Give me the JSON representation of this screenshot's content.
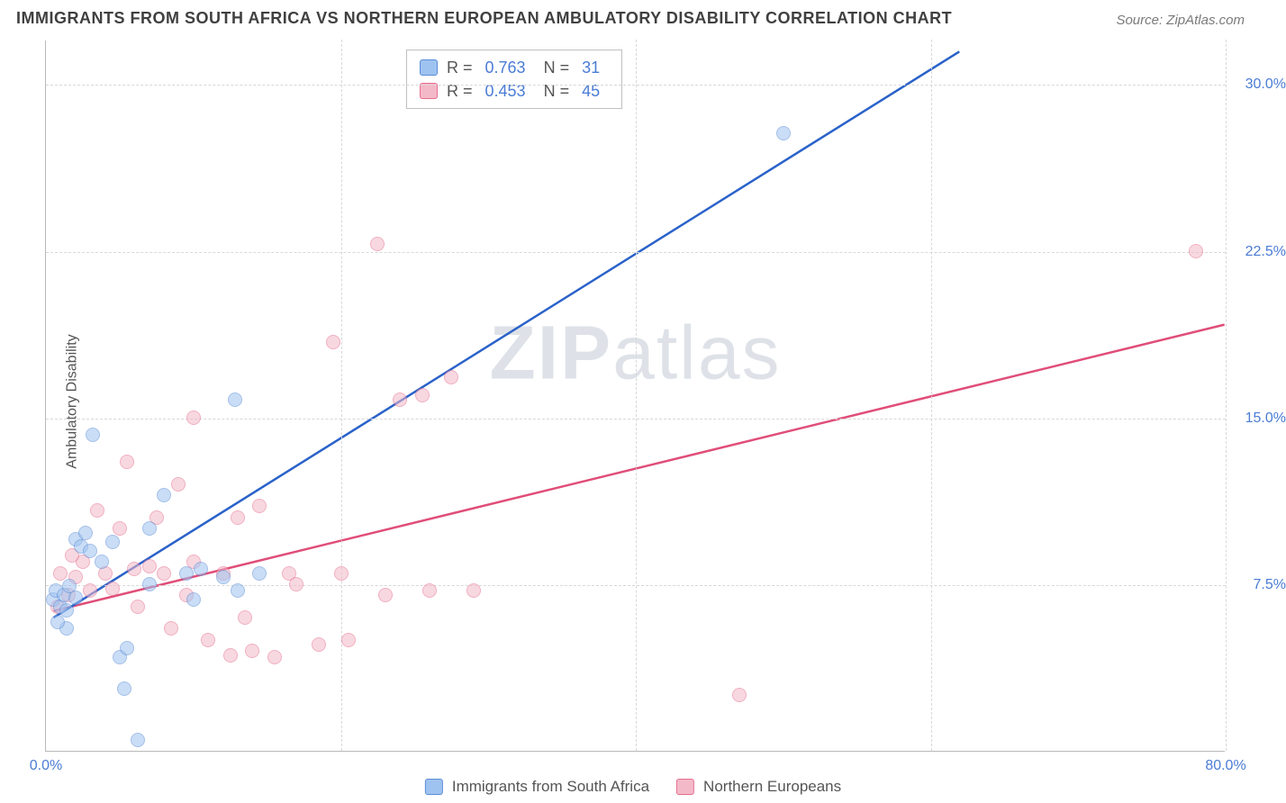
{
  "title": "IMMIGRANTS FROM SOUTH AFRICA VS NORTHERN EUROPEAN AMBULATORY DISABILITY CORRELATION CHART",
  "source": "Source: ZipAtlas.com",
  "y_axis_label": "Ambulatory Disability",
  "watermark": {
    "part1": "ZIP",
    "part2": "atlas"
  },
  "colors": {
    "series1_fill": "#9fc3f0",
    "series1_stroke": "#5a8cd6",
    "series2_fill": "#f4b9c8",
    "series2_stroke": "#e56f8f",
    "line1": "#2a62c9",
    "line2": "#e04e78",
    "grid": "#d8d8d8",
    "axis": "#b8b8b8",
    "tick_text": "#4a7cd4",
    "title_text": "#404040",
    "label_text": "#555555",
    "background": "#ffffff"
  },
  "chart": {
    "type": "scatter",
    "xlim": [
      0,
      80
    ],
    "ylim": [
      0,
      32
    ],
    "x_ticks": [
      0,
      20,
      40,
      60,
      80
    ],
    "x_tick_labels": [
      "0.0%",
      "",
      "",
      "",
      "80.0%"
    ],
    "y_ticks": [
      7.5,
      15.0,
      22.5,
      30.0
    ],
    "y_tick_labels": [
      "7.5%",
      "15.0%",
      "22.5%",
      "30.0%"
    ],
    "marker_radius": 8,
    "marker_opacity": 0.55,
    "line_width": 2.5
  },
  "legend_stats": {
    "rows": [
      {
        "r_label": "R =",
        "r_value": "0.763",
        "n_label": "N =",
        "n_value": "31"
      },
      {
        "r_label": "R =",
        "r_value": "0.453",
        "n_label": "N =",
        "n_value": "45"
      }
    ]
  },
  "bottom_legend": {
    "items": [
      {
        "label": "Immigrants from South Africa"
      },
      {
        "label": "Northern Europeans"
      }
    ]
  },
  "trend_lines": {
    "line1": {
      "x1": 0.5,
      "y1": 6.0,
      "x2": 62,
      "y2": 31.5
    },
    "line2": {
      "x1": 0.5,
      "y1": 6.3,
      "x2": 80,
      "y2": 19.2
    }
  },
  "series1": {
    "name": "Immigrants from South Africa",
    "points": [
      [
        0.5,
        6.8
      ],
      [
        0.7,
        7.2
      ],
      [
        1.0,
        6.5
      ],
      [
        1.2,
        7.0
      ],
      [
        1.4,
        6.3
      ],
      [
        1.6,
        7.4
      ],
      [
        1.4,
        5.5
      ],
      [
        2.0,
        9.5
      ],
      [
        2.4,
        9.2
      ],
      [
        2.7,
        9.8
      ],
      [
        3.0,
        9.0
      ],
      [
        3.2,
        14.2
      ],
      [
        3.8,
        8.5
      ],
      [
        4.5,
        9.4
      ],
      [
        5.0,
        4.2
      ],
      [
        5.3,
        2.8
      ],
      [
        5.5,
        4.6
      ],
      [
        6.2,
        0.5
      ],
      [
        7.0,
        10.0
      ],
      [
        7.0,
        7.5
      ],
      [
        8.0,
        11.5
      ],
      [
        9.5,
        8.0
      ],
      [
        10.0,
        6.8
      ],
      [
        10.5,
        8.2
      ],
      [
        12.0,
        7.8
      ],
      [
        12.8,
        15.8
      ],
      [
        13.0,
        7.2
      ],
      [
        14.5,
        8.0
      ],
      [
        50.0,
        27.8
      ],
      [
        0.8,
        5.8
      ],
      [
        2.0,
        6.9
      ]
    ]
  },
  "series2": {
    "name": "Northern Europeans",
    "points": [
      [
        0.8,
        6.5
      ],
      [
        1.0,
        8.0
      ],
      [
        1.5,
        7.0
      ],
      [
        2.0,
        7.8
      ],
      [
        2.5,
        8.5
      ],
      [
        3.0,
        7.2
      ],
      [
        3.5,
        10.8
      ],
      [
        4.0,
        8.0
      ],
      [
        4.5,
        7.3
      ],
      [
        5.0,
        10.0
      ],
      [
        5.5,
        13.0
      ],
      [
        6.0,
        8.2
      ],
      [
        6.2,
        6.5
      ],
      [
        7.0,
        8.3
      ],
      [
        7.5,
        10.5
      ],
      [
        8.0,
        8.0
      ],
      [
        8.5,
        5.5
      ],
      [
        9.0,
        12.0
      ],
      [
        9.5,
        7.0
      ],
      [
        10.0,
        15.0
      ],
      [
        10.0,
        8.5
      ],
      [
        11.0,
        5.0
      ],
      [
        12.0,
        8.0
      ],
      [
        12.5,
        4.3
      ],
      [
        13.0,
        10.5
      ],
      [
        13.5,
        6.0
      ],
      [
        14.0,
        4.5
      ],
      [
        14.5,
        11.0
      ],
      [
        15.5,
        4.2
      ],
      [
        16.5,
        8.0
      ],
      [
        17.0,
        7.5
      ],
      [
        18.5,
        4.8
      ],
      [
        19.5,
        18.4
      ],
      [
        20.0,
        8.0
      ],
      [
        20.5,
        5.0
      ],
      [
        22.5,
        22.8
      ],
      [
        23.0,
        7.0
      ],
      [
        24.0,
        15.8
      ],
      [
        25.5,
        16.0
      ],
      [
        26.0,
        7.2
      ],
      [
        27.5,
        16.8
      ],
      [
        29.0,
        7.2
      ],
      [
        47.0,
        2.5
      ],
      [
        78.0,
        22.5
      ],
      [
        1.8,
        8.8
      ]
    ]
  }
}
